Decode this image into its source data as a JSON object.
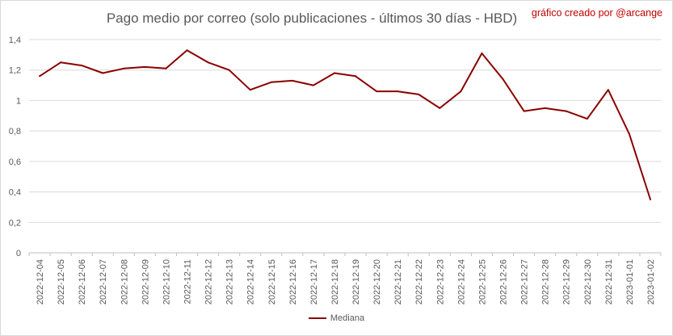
{
  "header": {
    "title": "Pago medio por correo (solo publicaciones - últimos 30 días - HBD)",
    "credit": "gráfico creado por @arcange"
  },
  "chart_data": {
    "type": "line",
    "title": "Pago medio por correo (solo publicaciones - últimos 30 días - HBD)",
    "xlabel": "",
    "ylabel": "",
    "ylim": [
      0,
      1.4
    ],
    "yticks": [
      "0",
      "0,2",
      "0,4",
      "0,6",
      "0,8",
      "1",
      "1,2",
      "1,4"
    ],
    "grid": true,
    "legend": "bottom",
    "categories": [
      "2022-12-04",
      "2022-12-05",
      "2022-12-06",
      "2022-12-07",
      "2022-12-08",
      "2022-12-09",
      "2022-12-10",
      "2022-12-11",
      "2022-12-12",
      "2022-12-13",
      "2022-12-14",
      "2022-12-15",
      "2022-12-16",
      "2022-12-17",
      "2022-12-18",
      "2022-12-19",
      "2022-12-20",
      "2022-12-21",
      "2022-12-22",
      "2022-12-23",
      "2022-12-24",
      "2022-12-25",
      "2022-12-26",
      "2022-12-27",
      "2022-12-28",
      "2022-12-29",
      "2022-12-30",
      "2022-12-31",
      "2023-01-01",
      "2023-01-02"
    ],
    "series": [
      {
        "name": "Mediana",
        "color": "#8b0000",
        "values": [
          1.16,
          1.25,
          1.23,
          1.18,
          1.21,
          1.22,
          1.21,
          1.33,
          1.25,
          1.2,
          1.07,
          1.12,
          1.13,
          1.1,
          1.18,
          1.16,
          1.06,
          1.06,
          1.04,
          0.95,
          1.06,
          1.31,
          1.14,
          0.93,
          0.95,
          0.93,
          0.88,
          1.07,
          0.78,
          0.35
        ]
      }
    ]
  }
}
